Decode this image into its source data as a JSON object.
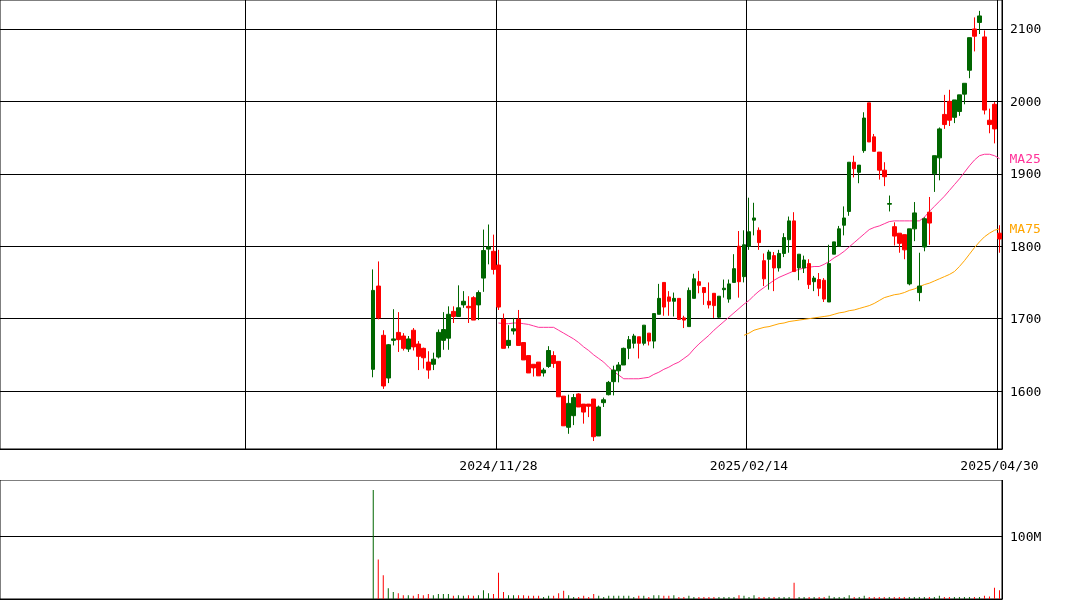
{
  "chart_data": [
    {
      "type": "candlestick",
      "categories": [
        null,
        null,
        null,
        null,
        null,
        null,
        null,
        null,
        null,
        null,
        null,
        null,
        null,
        null,
        null,
        null,
        null,
        null,
        null,
        null,
        null,
        null,
        null,
        null,
        null,
        null,
        null,
        null,
        null,
        null,
        null,
        null,
        null,
        null,
        null,
        null,
        null,
        null,
        null,
        null,
        null,
        null,
        null,
        null,
        null,
        null,
        null,
        null,
        null,
        null,
        null,
        null,
        null,
        null,
        null,
        null,
        null,
        null,
        null,
        null,
        null,
        null,
        null,
        null,
        null,
        null,
        null,
        null,
        null,
        null,
        null,
        null,
        null,
        null,
        null,
        null,
        null,
        null,
        null,
        null,
        null,
        null,
        null,
        null,
        null,
        null,
        null,
        null,
        null,
        null,
        null,
        null,
        null,
        null,
        null,
        null,
        null,
        null,
        null,
        "2024/11/28",
        null,
        null,
        null,
        null,
        null,
        null,
        null,
        null,
        null,
        null,
        null,
        null,
        null,
        null,
        null,
        null,
        null,
        null,
        null,
        null,
        null,
        null,
        null,
        null,
        null,
        null,
        null,
        null,
        null,
        null,
        null,
        null,
        null,
        null,
        null,
        null,
        null,
        null,
        null,
        null,
        null,
        null,
        null,
        null,
        null,
        null,
        null,
        null,
        null,
        "2025/02/14",
        null,
        null,
        null,
        null,
        null,
        null,
        null,
        null,
        null,
        null,
        null,
        null,
        null,
        null,
        null,
        null,
        null,
        null,
        null,
        null,
        null,
        null,
        null,
        null,
        null,
        null,
        null,
        null,
        null,
        null,
        null,
        null,
        null,
        null,
        null,
        null,
        null,
        null,
        null,
        null,
        null,
        null,
        null,
        null,
        null,
        null,
        null,
        null,
        null,
        "2025/04/30"
      ],
      "series": [
        {
          "ohlc": [
            null,
            null,
            null,
            null,
            null,
            null,
            null,
            null,
            null,
            null,
            null,
            null,
            null,
            null,
            null,
            null,
            null,
            null,
            null,
            null,
            null,
            null,
            null,
            null,
            null,
            null,
            null,
            null,
            null,
            null,
            null,
            null,
            null,
            null,
            null,
            null,
            null,
            null,
            null,
            null,
            null,
            null,
            null,
            null,
            null,
            null,
            null,
            null,
            null,
            null,
            null,
            null,
            null,
            null,
            null,
            null,
            null,
            null,
            null,
            null,
            null,
            null,
            null,
            null,
            null,
            null,
            null,
            null,
            null,
            null,
            null,
            null,
            null,
            null,
            [
              1630,
              1768,
              1619,
              1739
            ],
            [
              1745,
              1779,
              1699,
              1701
            ],
            [
              1677,
              1684,
              1603,
              1607
            ],
            [
              1618,
              1665,
              1611,
              1664
            ],
            [
              1670,
              1713,
              1663,
              1672
            ],
            [
              1681,
              1709,
              1654,
              1671
            ],
            [
              1676,
              1680,
              1656,
              1659
            ],
            [
              1658,
              1676,
              1654,
              1672
            ],
            [
              1684,
              1687,
              1656,
              1661
            ],
            [
              1665,
              1669,
              1629,
              1648
            ],
            [
              1659,
              1660,
              1631,
              1646
            ],
            [
              1640,
              1655,
              1617,
              1629
            ],
            [
              1637,
              1653,
              1629,
              1644
            ],
            [
              1647,
              1685,
              1645,
              1681
            ],
            [
              1670,
              1709,
              1657,
              1685
            ],
            [
              1673,
              1717,
              1657,
              1706
            ],
            [
              1710,
              1717,
              1694,
              1703
            ],
            [
              1703,
              1746,
              1703,
              1715
            ],
            [
              1719,
              1738,
              1715,
              1724
            ],
            [
              1717,
              1731,
              1694,
              1715
            ],
            [
              1729,
              1731,
              1698,
              1698
            ],
            [
              1719,
              1739,
              1698,
              1736
            ],
            [
              1756,
              1823,
              1737,
              1794
            ],
            [
              1796,
              1830,
              1775,
              1799
            ],
            [
              1793,
              1816,
              1761,
              1768
            ],
            [
              1774,
              1795,
              1712,
              1716
            ],
            [
              1699,
              1707,
              1659,
              1659
            ],
            [
              1663,
              1691,
              1659,
              1670
            ],
            [
              1683,
              1701,
              1678,
              1686
            ],
            [
              1699,
              1712,
              1663,
              1663
            ],
            [
              1667,
              1667,
              1643,
              1643
            ],
            [
              1649,
              1649,
              1625,
              1625
            ],
            [
              1637,
              1637,
              1620,
              1632
            ],
            [
              1640,
              1640,
              1621,
              1621
            ],
            [
              1625,
              1632,
              1620,
              1629
            ],
            [
              1634,
              1662,
              1632,
              1656
            ],
            [
              1649,
              1655,
              1632,
              1638
            ],
            [
              1641,
              1641,
              1592,
              1592
            ],
            [
              1593,
              1593,
              1552,
              1552
            ],
            [
              1550,
              1595,
              1541,
              1583
            ],
            [
              1566,
              1596,
              1553,
              1591
            ],
            [
              1596,
              1597,
              1578,
              1578
            ],
            [
              1582,
              1582,
              1555,
              1571
            ],
            [
              1582,
              1582,
              1564,
              1579
            ],
            [
              1589,
              1589,
              1531,
              1537
            ],
            [
              1538,
              1580,
              1538,
              1578
            ],
            [
              1584,
              1591,
              1578,
              1588
            ],
            [
              1595,
              1614,
              1594,
              1612
            ],
            [
              1613,
              1635,
              1594,
              1629
            ],
            [
              1628,
              1640,
              1612,
              1636
            ],
            [
              1636,
              1660,
              1636,
              1659
            ],
            [
              1659,
              1676,
              1644,
              1671
            ],
            [
              1666,
              1679,
              1659,
              1676
            ],
            [
              1675,
              1675,
              1645,
              1666
            ],
            [
              1666,
              1691,
              1663,
              1691
            ],
            [
              1680,
              1680,
              1663,
              1669
            ],
            [
              1669,
              1707,
              1659,
              1707
            ],
            [
              1706,
              1748,
              1706,
              1728
            ],
            [
              1750,
              1750,
              1704,
              1716
            ],
            [
              1730,
              1738,
              1704,
              1724
            ],
            [
              1724,
              1736,
              1703,
              1728
            ],
            [
              1728,
              1728,
              1699,
              1699
            ],
            [
              1701,
              1704,
              1687,
              1698
            ],
            [
              1689,
              1743,
              1689,
              1739
            ],
            [
              1728,
              1762,
              1728,
              1755
            ],
            [
              1751,
              1766,
              1735,
              1746
            ],
            [
              1743,
              1743,
              1719,
              1736
            ],
            [
              1724,
              1750,
              1714,
              1719
            ],
            [
              1735,
              1735,
              1701,
              1718
            ],
            [
              1702,
              1731,
              1701,
              1731
            ],
            [
              1740,
              1754,
              1729,
              1742
            ],
            [
              1727,
              1754,
              1722,
              1748
            ],
            [
              1750,
              1789,
              1750,
              1769
            ],
            [
              1800,
              1821,
              1729,
              1751
            ],
            [
              1758,
              1822,
              1750,
              1802
            ],
            [
              1800,
              1867,
              1795,
              1820
            ],
            [
              1836,
              1860,
              1815,
              1839
            ],
            [
              1822,
              1826,
              1795,
              1805
            ],
            [
              1780,
              1790,
              1745,
              1755
            ],
            [
              1782,
              1795,
              1740,
              1792
            ],
            [
              1787,
              1792,
              1738,
              1770
            ],
            [
              1770,
              1795,
              1765,
              1790
            ],
            [
              1790,
              1818,
              1785,
              1812
            ],
            [
              1809,
              1841,
              1791,
              1835
            ],
            [
              1835,
              1847,
              1765,
              1765
            ],
            [
              1770,
              1789,
              1753,
              1789
            ],
            [
              1770,
              1787,
              1763,
              1781
            ],
            [
              1776,
              1782,
              1741,
              1747
            ],
            [
              1751,
              1759,
              1738,
              1756
            ],
            [
              1754,
              1763,
              1731,
              1742
            ],
            [
              1753,
              1756,
              1723,
              1727
            ],
            [
              1723,
              1802,
              1723,
              1776
            ],
            [
              1789,
              1806,
              1789,
              1806
            ],
            [
              1800,
              1828,
              1800,
              1824
            ],
            [
              1829,
              1855,
              1815,
              1839
            ],
            [
              1848,
              1916,
              1842,
              1916
            ],
            [
              1916,
              1925,
              1895,
              1907
            ],
            [
              1902,
              1912,
              1887,
              1912
            ],
            [
              1932,
              1985,
              1929,
              1977
            ],
            [
              1998,
              1998,
              1944,
              1944
            ],
            [
              1951,
              1955,
              1931,
              1931
            ],
            [
              1930,
              1930,
              1892,
              1905
            ],
            [
              1905,
              1916,
              1883,
              1896
            ],
            [
              1858,
              1870,
              1848,
              1859
            ],
            [
              1827,
              1833,
              1801,
              1814
            ],
            [
              1818,
              1818,
              1791,
              1804
            ],
            [
              1816,
              1816,
              1782,
              1795
            ],
            [
              1748,
              1824,
              1746,
              1824
            ],
            [
              1824,
              1861,
              1807,
              1846
            ],
            [
              1736,
              1791,
              1724,
              1745
            ],
            [
              1799,
              1840,
              1793,
              1838
            ],
            [
              1847,
              1868,
              1802,
              1832
            ],
            [
              1900,
              1925,
              1875,
              1925
            ],
            [
              1922,
              1964,
              1891,
              1962
            ],
            [
              1982,
              2009,
              1962,
              1968
            ],
            [
              2000,
              2016,
              1966,
              1974
            ],
            [
              1978,
              2002,
              1970,
              2002
            ],
            [
              1986,
              2009,
              1980,
              2009
            ],
            [
              2010,
              2025,
              1996,
              2025
            ],
            [
              2043,
              2088,
              2032,
              2088
            ],
            [
              2100,
              2116,
              2069,
              2090
            ],
            [
              2109,
              2125,
              2093,
              2118
            ],
            [
              2089,
              2098,
              1982,
              1988
            ],
            [
              1974,
              1990,
              1956,
              1968
            ],
            [
              1996,
              1999,
              1942,
              1962
            ],
            [
              1818,
              1829,
              1791,
              1810
            ]
          ],
          "colors": [
            null,
            null,
            null,
            null,
            null,
            null,
            null,
            null,
            null,
            null,
            null,
            null,
            null,
            null,
            null,
            null,
            null,
            null,
            null,
            null,
            null,
            null,
            null,
            null,
            null,
            null,
            null,
            null,
            null,
            null,
            null,
            null,
            null,
            null,
            null,
            null,
            null,
            null,
            null,
            null,
            null,
            null,
            null,
            null,
            null,
            null,
            null,
            null,
            null,
            null,
            null,
            null,
            null,
            null,
            null,
            null,
            null,
            null,
            null,
            null,
            null,
            null,
            null,
            null,
            null,
            null,
            null,
            null,
            null,
            null,
            null,
            null,
            null,
            null,
            "#006600",
            "#ff0000",
            "#ff0000",
            "#006600",
            "#006600",
            "#ff0000",
            "#ff0000",
            "#006600",
            "#ff0000",
            "#ff0000",
            "#ff0000",
            "#ff0000",
            "#006600",
            "#006600",
            "#006600",
            "#006600",
            "#ff0000",
            "#006600",
            "#006600",
            "#ff0000",
            "#ff0000",
            "#006600",
            "#006600",
            "#006600",
            "#ff0000",
            "#ff0000",
            "#ff0000",
            "#006600",
            "#006600",
            "#ff0000",
            "#ff0000",
            "#ff0000",
            "#ff0000",
            "#ff0000",
            "#006600",
            "#006600",
            "#ff0000",
            "#ff0000",
            "#ff0000",
            "#006600",
            "#006600",
            "#ff0000",
            "#ff0000",
            "#ff0000",
            "#ff0000",
            "#006600",
            "#006600",
            "#006600",
            "#006600",
            "#006600",
            "#006600",
            "#006600",
            "#006600",
            "#ff0000",
            "#006600",
            "#ff0000",
            "#006600",
            "#006600",
            "#ff0000",
            "#ff0000",
            "#006600",
            "#ff0000",
            "#ff0000",
            "#006600",
            "#006600",
            "#ff0000",
            "#ff0000",
            "#ff0000",
            "#ff0000",
            "#006600",
            "#006600",
            "#006600",
            "#006600",
            "#ff0000",
            "#006600",
            "#006600",
            "#006600",
            "#ff0000",
            "#ff0000",
            "#006600",
            "#ff0000",
            "#006600",
            "#006600",
            "#006600",
            "#ff0000",
            "#006600",
            "#006600",
            "#ff0000",
            "#006600",
            "#ff0000",
            "#ff0000",
            "#006600",
            "#006600",
            "#006600",
            "#006600",
            "#006600",
            "#ff0000",
            "#006600",
            "#006600",
            "#ff0000",
            "#ff0000",
            "#ff0000",
            "#ff0000",
            "#006600",
            "#ff0000",
            "#ff0000",
            "#ff0000",
            "#006600",
            "#006600",
            "#006600",
            "#006600",
            "#ff0000",
            "#006600",
            "#006600",
            "#ff0000",
            "#ff0000",
            "#006600",
            "#006600",
            "#006600",
            "#006600",
            "#ff0000",
            "#006600",
            "#ff0000",
            "#ff0000",
            "#ff0000",
            "#ff0000"
          ]
        },
        {
          "type": "line",
          "name": "MA25",
          "color": "#ff3399",
          "values": [
            null,
            null,
            null,
            null,
            null,
            null,
            null,
            null,
            null,
            null,
            null,
            null,
            null,
            null,
            null,
            null,
            null,
            null,
            null,
            null,
            null,
            null,
            null,
            null,
            null,
            null,
            null,
            null,
            null,
            null,
            null,
            null,
            null,
            null,
            null,
            null,
            null,
            null,
            null,
            null,
            null,
            null,
            null,
            null,
            null,
            null,
            null,
            null,
            null,
            null,
            null,
            null,
            null,
            null,
            null,
            null,
            null,
            null,
            null,
            null,
            null,
            null,
            null,
            null,
            null,
            null,
            null,
            null,
            null,
            null,
            null,
            null,
            null,
            null,
            null,
            null,
            null,
            null,
            null,
            null,
            null,
            null,
            null,
            null,
            null,
            null,
            null,
            null,
            null,
            null,
            null,
            null,
            null,
            null,
            null,
            null,
            null,
            null,
            null,
            1694,
            1693,
            1693,
            1694,
            1694,
            1693,
            1692,
            1690,
            1688,
            1688,
            1688,
            1688,
            1684,
            1680,
            1676,
            1672,
            1667,
            1661,
            1656,
            1650,
            1645,
            1640,
            1633,
            1627,
            1622,
            1617,
            1617,
            1617,
            1617,
            1618,
            1619,
            1623,
            1626,
            1630,
            1633,
            1637,
            1640,
            1645,
            1650,
            1658,
            1665,
            1671,
            1677,
            1684,
            1690,
            1696,
            1702,
            1708,
            1714,
            1720,
            1725,
            1732,
            1738,
            1743,
            1748,
            1753,
            1757,
            1760,
            1763,
            1766,
            1768,
            1770,
            1771,
            1772,
            1772,
            1775,
            1779,
            1784,
            1788,
            1793,
            1799,
            1805,
            1811,
            1817,
            1823,
            1826,
            1828,
            1831,
            1834,
            1835,
            1835,
            1835,
            1835,
            1835,
            1835,
            1840,
            1848,
            1855,
            1862,
            1869,
            1877,
            1885,
            1893,
            1902,
            1911,
            1919,
            1925,
            1927,
            1927,
            1925,
            1921
          ]
        },
        {
          "type": "line",
          "name": "MA75",
          "color": "#ffa500",
          "values": [
            null,
            null,
            null,
            null,
            null,
            null,
            null,
            null,
            null,
            null,
            null,
            null,
            null,
            null,
            null,
            null,
            null,
            null,
            null,
            null,
            null,
            null,
            null,
            null,
            null,
            null,
            null,
            null,
            null,
            null,
            null,
            null,
            null,
            null,
            null,
            null,
            null,
            null,
            null,
            null,
            null,
            null,
            null,
            null,
            null,
            null,
            null,
            null,
            null,
            null,
            null,
            null,
            null,
            null,
            null,
            null,
            null,
            null,
            null,
            null,
            null,
            null,
            null,
            null,
            null,
            null,
            null,
            null,
            null,
            null,
            null,
            null,
            null,
            null,
            null,
            null,
            null,
            null,
            null,
            null,
            null,
            null,
            null,
            null,
            null,
            null,
            null,
            null,
            null,
            null,
            null,
            null,
            null,
            null,
            null,
            null,
            null,
            null,
            null,
            null,
            null,
            null,
            null,
            null,
            null,
            null,
            null,
            null,
            null,
            null,
            null,
            null,
            null,
            null,
            null,
            null,
            null,
            null,
            null,
            null,
            null,
            null,
            null,
            null,
            null,
            null,
            null,
            null,
            null,
            null,
            null,
            null,
            null,
            null,
            null,
            null,
            null,
            null,
            null,
            null,
            null,
            null,
            null,
            null,
            null,
            null,
            null,
            null,
            1677,
            1680,
            1684,
            1686,
            1688,
            1689,
            1691,
            1693,
            1694,
            1696,
            1697,
            1698,
            1699,
            1700,
            1701,
            1702,
            1703,
            1704,
            1706,
            1708,
            1709,
            1711,
            1712,
            1714,
            1716,
            1718,
            1721,
            1725,
            1729,
            1731,
            1733,
            1734,
            1736,
            1739,
            1741,
            1744,
            1747,
            1749,
            1752,
            1755,
            1758,
            1761,
            1765,
            1772,
            1780,
            1789,
            1798,
            1806,
            1813,
            1818,
            1822,
            1824
          ]
        }
      ],
      "ylim": [
        1520,
        2140
      ],
      "yticks": [
        1600,
        1700,
        1800,
        1900,
        2000,
        2100
      ],
      "grid": true,
      "legend": false,
      "marker": "none",
      "line_style": "solid"
    },
    {
      "type": "bar",
      "categories": [
        null,
        null,
        null,
        null,
        null,
        null,
        null,
        null,
        null,
        null,
        null,
        null,
        null,
        null,
        null,
        null,
        null,
        null,
        null,
        null,
        null,
        null,
        null,
        null,
        null,
        null,
        null,
        null,
        null,
        null,
        null,
        null,
        null,
        null,
        null,
        null,
        null,
        null,
        null,
        null,
        null,
        null,
        null,
        null,
        null,
        null,
        null,
        null,
        null,
        null,
        null,
        null,
        null,
        null,
        null,
        null,
        null,
        null,
        null,
        null,
        null,
        null,
        null,
        null,
        null,
        null,
        null,
        null,
        null,
        null,
        null,
        null,
        null,
        null,
        null,
        null,
        null,
        null,
        null,
        null,
        null,
        null,
        null,
        null,
        null,
        null,
        null,
        null,
        null,
        null,
        null,
        null,
        null,
        null,
        null,
        null,
        null,
        null,
        null,
        null,
        null,
        null,
        null,
        null,
        null,
        null,
        null,
        null,
        null,
        null,
        null,
        null,
        null,
        null,
        null,
        null,
        null,
        null,
        null,
        null,
        null,
        null,
        null,
        null,
        null,
        null,
        null,
        null,
        null,
        null,
        null,
        null,
        null,
        null,
        null,
        null,
        null,
        null,
        null,
        null,
        null,
        null,
        null,
        null,
        null,
        null,
        null,
        null,
        null,
        null,
        null,
        null,
        null,
        null,
        null,
        null,
        null,
        null,
        null,
        null,
        null,
        null,
        null,
        null,
        null,
        null,
        null,
        null,
        null,
        null,
        null,
        null,
        null,
        null,
        null,
        null,
        null,
        null,
        null,
        null,
        null,
        null,
        null,
        null,
        null,
        null,
        null,
        null,
        null,
        null,
        null,
        null,
        null,
        null,
        null,
        null,
        null,
        null,
        null,
        null
      ],
      "values": [
        null,
        null,
        null,
        null,
        null,
        null,
        null,
        null,
        null,
        null,
        null,
        null,
        null,
        null,
        null,
        null,
        null,
        null,
        null,
        null,
        null,
        null,
        null,
        null,
        null,
        null,
        null,
        null,
        null,
        null,
        null,
        null,
        null,
        null,
        null,
        null,
        null,
        null,
        null,
        null,
        null,
        null,
        null,
        null,
        null,
        null,
        null,
        null,
        null,
        null,
        null,
        null,
        null,
        null,
        null,
        null,
        null,
        null,
        null,
        null,
        null,
        null,
        null,
        null,
        null,
        null,
        null,
        null,
        null,
        null,
        null,
        null,
        null,
        null,
        174,
        63,
        38,
        17,
        11,
        9,
        6,
        6,
        5,
        8,
        6,
        8,
        6,
        8,
        8,
        8,
        5,
        6,
        5,
        6,
        5,
        6,
        14,
        9,
        8,
        42,
        11,
        6,
        6,
        6,
        6,
        5,
        5,
        5,
        3,
        5,
        5,
        9,
        13,
        6,
        3,
        3,
        5,
        3,
        8,
        5,
        3,
        5,
        5,
        5,
        5,
        5,
        3,
        5,
        5,
        3,
        6,
        6,
        5,
        5,
        6,
        3,
        3,
        5,
        3,
        3,
        3,
        3,
        3,
        3,
        3,
        3,
        3,
        6,
        5,
        3,
        6,
        3,
        3,
        3,
        3,
        3,
        3,
        3,
        26,
        3,
        3,
        3,
        3,
        3,
        3,
        5,
        3,
        3,
        3,
        6,
        3,
        3,
        5,
        3,
        3,
        3,
        3,
        3,
        3,
        3,
        3,
        3,
        3,
        3,
        3,
        3,
        3,
        5,
        3,
        3,
        3,
        3,
        3,
        3,
        3,
        3,
        5,
        4,
        18,
        14
      ],
      "colors": [
        null,
        null,
        null,
        null,
        null,
        null,
        null,
        null,
        null,
        null,
        null,
        null,
        null,
        null,
        null,
        null,
        null,
        null,
        null,
        null,
        null,
        null,
        null,
        null,
        null,
        null,
        null,
        null,
        null,
        null,
        null,
        null,
        null,
        null,
        null,
        null,
        null,
        null,
        null,
        null,
        null,
        null,
        null,
        null,
        null,
        null,
        null,
        null,
        null,
        null,
        null,
        null,
        null,
        null,
        null,
        null,
        null,
        null,
        null,
        null,
        null,
        null,
        null,
        null,
        null,
        null,
        null,
        null,
        null,
        null,
        null,
        null,
        null,
        null,
        "#006600",
        "#ff0000",
        "#ff0000",
        "#006600",
        "#006600",
        "#ff0000",
        "#ff0000",
        "#006600",
        "#ff0000",
        "#ff0000",
        "#ff0000",
        "#ff0000",
        "#006600",
        "#006600",
        "#006600",
        "#006600",
        "#ff0000",
        "#006600",
        "#006600",
        "#ff0000",
        "#ff0000",
        "#006600",
        "#006600",
        "#006600",
        "#ff0000",
        "#ff0000",
        "#ff0000",
        "#006600",
        "#006600",
        "#ff0000",
        "#ff0000",
        "#ff0000",
        "#ff0000",
        "#ff0000",
        "#006600",
        "#006600",
        "#ff0000",
        "#ff0000",
        "#ff0000",
        "#006600",
        "#006600",
        "#ff0000",
        "#ff0000",
        "#ff0000",
        "#ff0000",
        "#006600",
        "#006600",
        "#006600",
        "#006600",
        "#006600",
        "#006600",
        "#006600",
        "#006600",
        "#ff0000",
        "#006600",
        "#ff0000",
        "#006600",
        "#006600",
        "#ff0000",
        "#ff0000",
        "#006600",
        "#ff0000",
        "#ff0000",
        "#006600",
        "#006600",
        "#ff0000",
        "#ff0000",
        "#ff0000",
        "#ff0000",
        "#006600",
        "#006600",
        "#006600",
        "#006600",
        "#ff0000",
        "#006600",
        "#006600",
        "#006600",
        "#ff0000",
        "#ff0000",
        "#006600",
        "#ff0000",
        "#006600",
        "#006600",
        "#006600",
        "#ff0000",
        "#006600",
        "#006600",
        "#ff0000",
        "#006600",
        "#ff0000",
        "#ff0000",
        "#006600",
        "#006600",
        "#006600",
        "#006600",
        "#006600",
        "#ff0000",
        "#006600",
        "#006600",
        "#ff0000",
        "#ff0000",
        "#ff0000",
        "#ff0000",
        "#006600",
        "#ff0000",
        "#ff0000",
        "#ff0000",
        "#006600",
        "#006600",
        "#006600",
        "#006600",
        "#ff0000",
        "#006600",
        "#006600",
        "#ff0000",
        "#ff0000",
        "#006600",
        "#006600",
        "#006600",
        "#006600",
        "#ff0000",
        "#006600",
        "#ff0000",
        "#ff0000",
        "#ff0000",
        "#ff0000"
      ],
      "ylim": [
        0,
        190
      ],
      "yticks": [
        {
          "value": 100,
          "label": "100M"
        }
      ],
      "grid": "y",
      "legend": false,
      "tick_labels": "y"
    }
  ]
}
